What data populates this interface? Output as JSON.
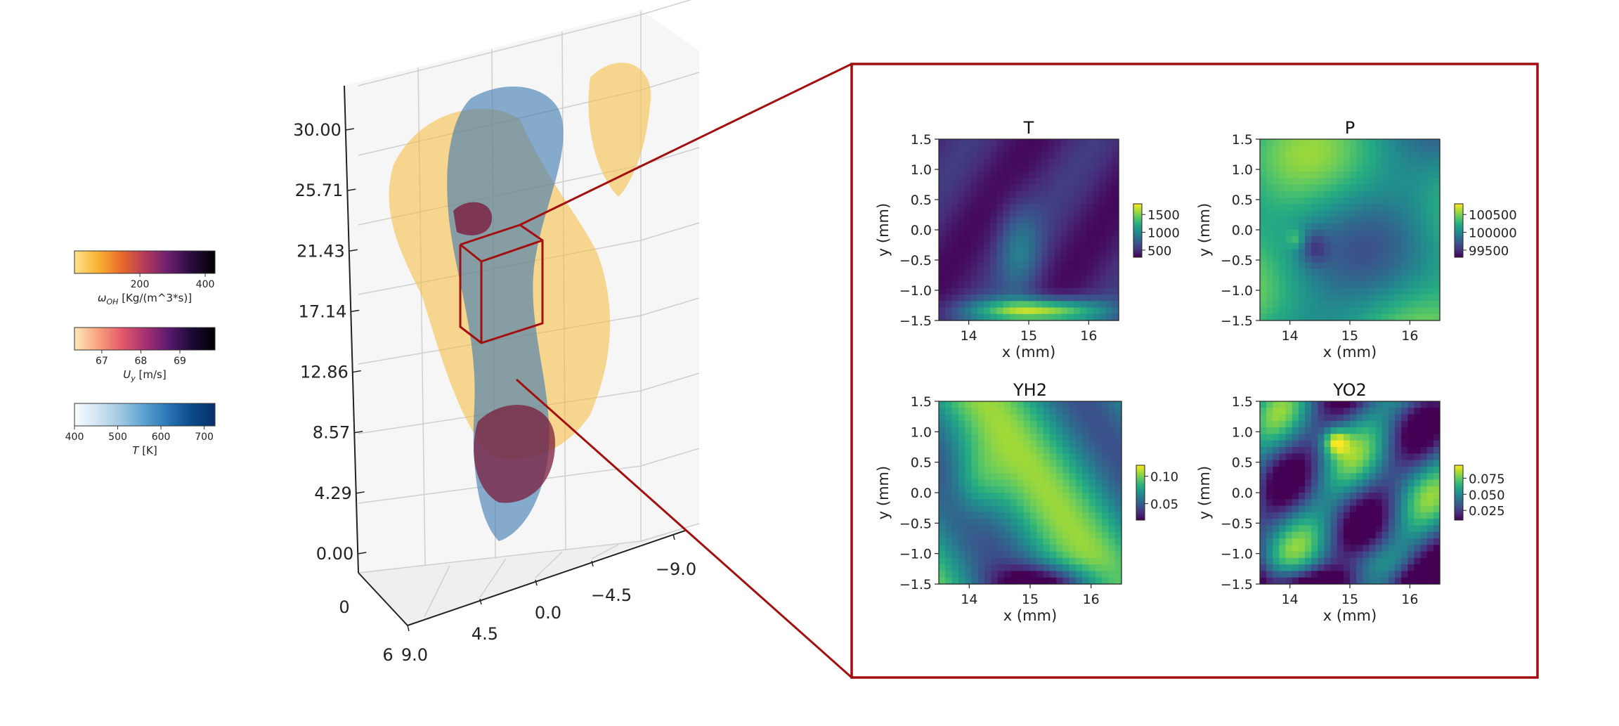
{
  "colors": {
    "frame": "#a30f0f",
    "axis": "#222222",
    "grid": "#cfcfcf",
    "pane": "#f3f3f3"
  },
  "legend_colorbars": [
    {
      "label": "ω_OH [Kg/(m^3*s)]",
      "label_symbol": "ω",
      "label_sub": "OH",
      "label_rest": " [Kg/(m^3*s)]",
      "ticks": [
        200,
        400
      ],
      "range": [
        0,
        430
      ],
      "colors": [
        "#fde38a",
        "#f9b233",
        "#ea6a2a",
        "#b43a5a",
        "#6a1f6e",
        "#2a0b3d",
        "#000000"
      ]
    },
    {
      "label": "U_y [m/s]",
      "label_symbol": "U",
      "label_sub": "y",
      "label_rest": " [m/s]",
      "ticks": [
        67,
        68,
        69
      ],
      "range": [
        66.3,
        69.9
      ],
      "colors": [
        "#fde9b8",
        "#f8a27e",
        "#e55a6a",
        "#a8326f",
        "#5c1a6e",
        "#1b0a36",
        "#000000"
      ]
    },
    {
      "label": "T [K]",
      "label_symbol": "T",
      "label_sub": "",
      "label_rest": " [K]",
      "ticks": [
        400,
        500,
        600,
        700
      ],
      "range": [
        400,
        725
      ],
      "colors": [
        "#f7fbff",
        "#d2e3f3",
        "#9dc8e2",
        "#5aa1cf",
        "#2a75b5",
        "#0b4a8a",
        "#08306b"
      ]
    }
  ],
  "volume_plot": {
    "z_ticks": [
      "0.00",
      "4.29",
      "8.57",
      "12.86",
      "17.14",
      "21.43",
      "25.71",
      "30.00"
    ],
    "x_ticks": [
      "9.0",
      "4.5",
      "0.0",
      "−4.5",
      "−9.0"
    ],
    "y_ticks": [
      "0",
      "6"
    ]
  },
  "chart_data": [
    {
      "type": "heatmap",
      "title": "T",
      "xlabel": "x (mm)",
      "ylabel": "y (mm)",
      "xticks": [
        "14",
        "15",
        "16"
      ],
      "yticks": [
        "1.5",
        "1.0",
        "0.5",
        "0.0",
        "−0.5",
        "−1.0",
        "−1.5"
      ],
      "xlim": [
        13.5,
        16.5
      ],
      "ylim": [
        -1.5,
        1.5
      ],
      "colorbar_ticks": [
        "1500",
        "1000",
        "500"
      ],
      "colorbar_range": [
        300,
        1800
      ]
    },
    {
      "type": "heatmap",
      "title": "P",
      "xlabel": "x (mm)",
      "ylabel": "y (mm)",
      "xticks": [
        "14",
        "15",
        "16"
      ],
      "yticks": [
        "1.5",
        "1.0",
        "0.5",
        "0.0",
        "−0.5",
        "−1.0",
        "−1.5"
      ],
      "xlim": [
        13.5,
        16.5
      ],
      "ylim": [
        -1.5,
        1.5
      ],
      "colorbar_ticks": [
        "100500",
        "100000",
        "99500"
      ],
      "colorbar_range": [
        99300,
        100800
      ]
    },
    {
      "type": "heatmap",
      "title": "YH2",
      "xlabel": "x (mm)",
      "ylabel": "y (mm)",
      "xticks": [
        "14",
        "15",
        "16"
      ],
      "yticks": [
        "1.5",
        "1.0",
        "0.5",
        "0.0",
        "−0.5",
        "−1.0",
        "−1.5"
      ],
      "xlim": [
        13.5,
        16.5
      ],
      "ylim": [
        -1.5,
        1.5
      ],
      "colorbar_ticks": [
        "0.10",
        "0.05"
      ],
      "colorbar_range": [
        0.02,
        0.12
      ]
    },
    {
      "type": "heatmap",
      "title": "YO2",
      "xlabel": "x (mm)",
      "ylabel": "y (mm)",
      "xticks": [
        "14",
        "15",
        "16"
      ],
      "yticks": [
        "1.5",
        "1.0",
        "0.5",
        "0.0",
        "−0.5",
        "−1.0",
        "−1.5"
      ],
      "xlim": [
        13.5,
        16.5
      ],
      "ylim": [
        -1.5,
        1.5
      ],
      "colorbar_ticks": [
        "0.075",
        "0.050",
        "0.025"
      ],
      "colorbar_range": [
        0.01,
        0.095
      ]
    }
  ]
}
